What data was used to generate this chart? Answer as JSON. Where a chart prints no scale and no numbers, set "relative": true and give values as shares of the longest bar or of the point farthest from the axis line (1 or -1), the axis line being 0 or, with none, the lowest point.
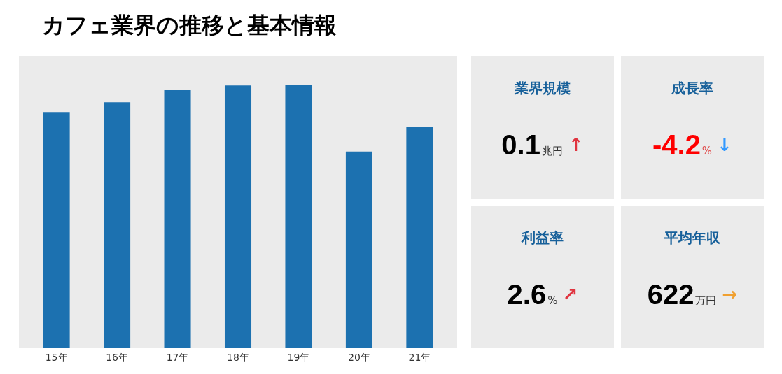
{
  "chart_data": [
    {
      "type": "bar",
      "title": "カフェ業界の推移と基本情報",
      "categories": [
        "15年",
        "16年",
        "17年",
        "18年",
        "19年",
        "20年",
        "21年"
      ],
      "values": [
        0.896,
        0.933,
        0.979,
        0.997,
        1,
        0.746,
        0.841
      ],
      "color": "#1c71b0",
      "relative": true
    },
    {
      "type": "other",
      "title": "業界規模",
      "annotations": [
        "0.1",
        "兆円",
        "↑"
      ],
      "colors": [
        "#000000",
        "#333333",
        "#e0343f"
      ]
    },
    {
      "type": "other",
      "title": "成長率",
      "annotations": [
        "-4.2",
        "%",
        "↓"
      ],
      "colors": [
        "#ff0000",
        "#e05050",
        "#3399ff"
      ]
    },
    {
      "type": "other",
      "title": "利益率",
      "annotations": [
        "2.6",
        "%",
        "↗"
      ],
      "colors": [
        "#000000",
        "#333333",
        "#e0343f"
      ]
    },
    {
      "type": "other",
      "title": "平均年収",
      "annotations": [
        "622",
        "万円",
        "→"
      ],
      "colors": [
        "#000000",
        "#333333",
        "#f0a030"
      ]
    }
  ]
}
